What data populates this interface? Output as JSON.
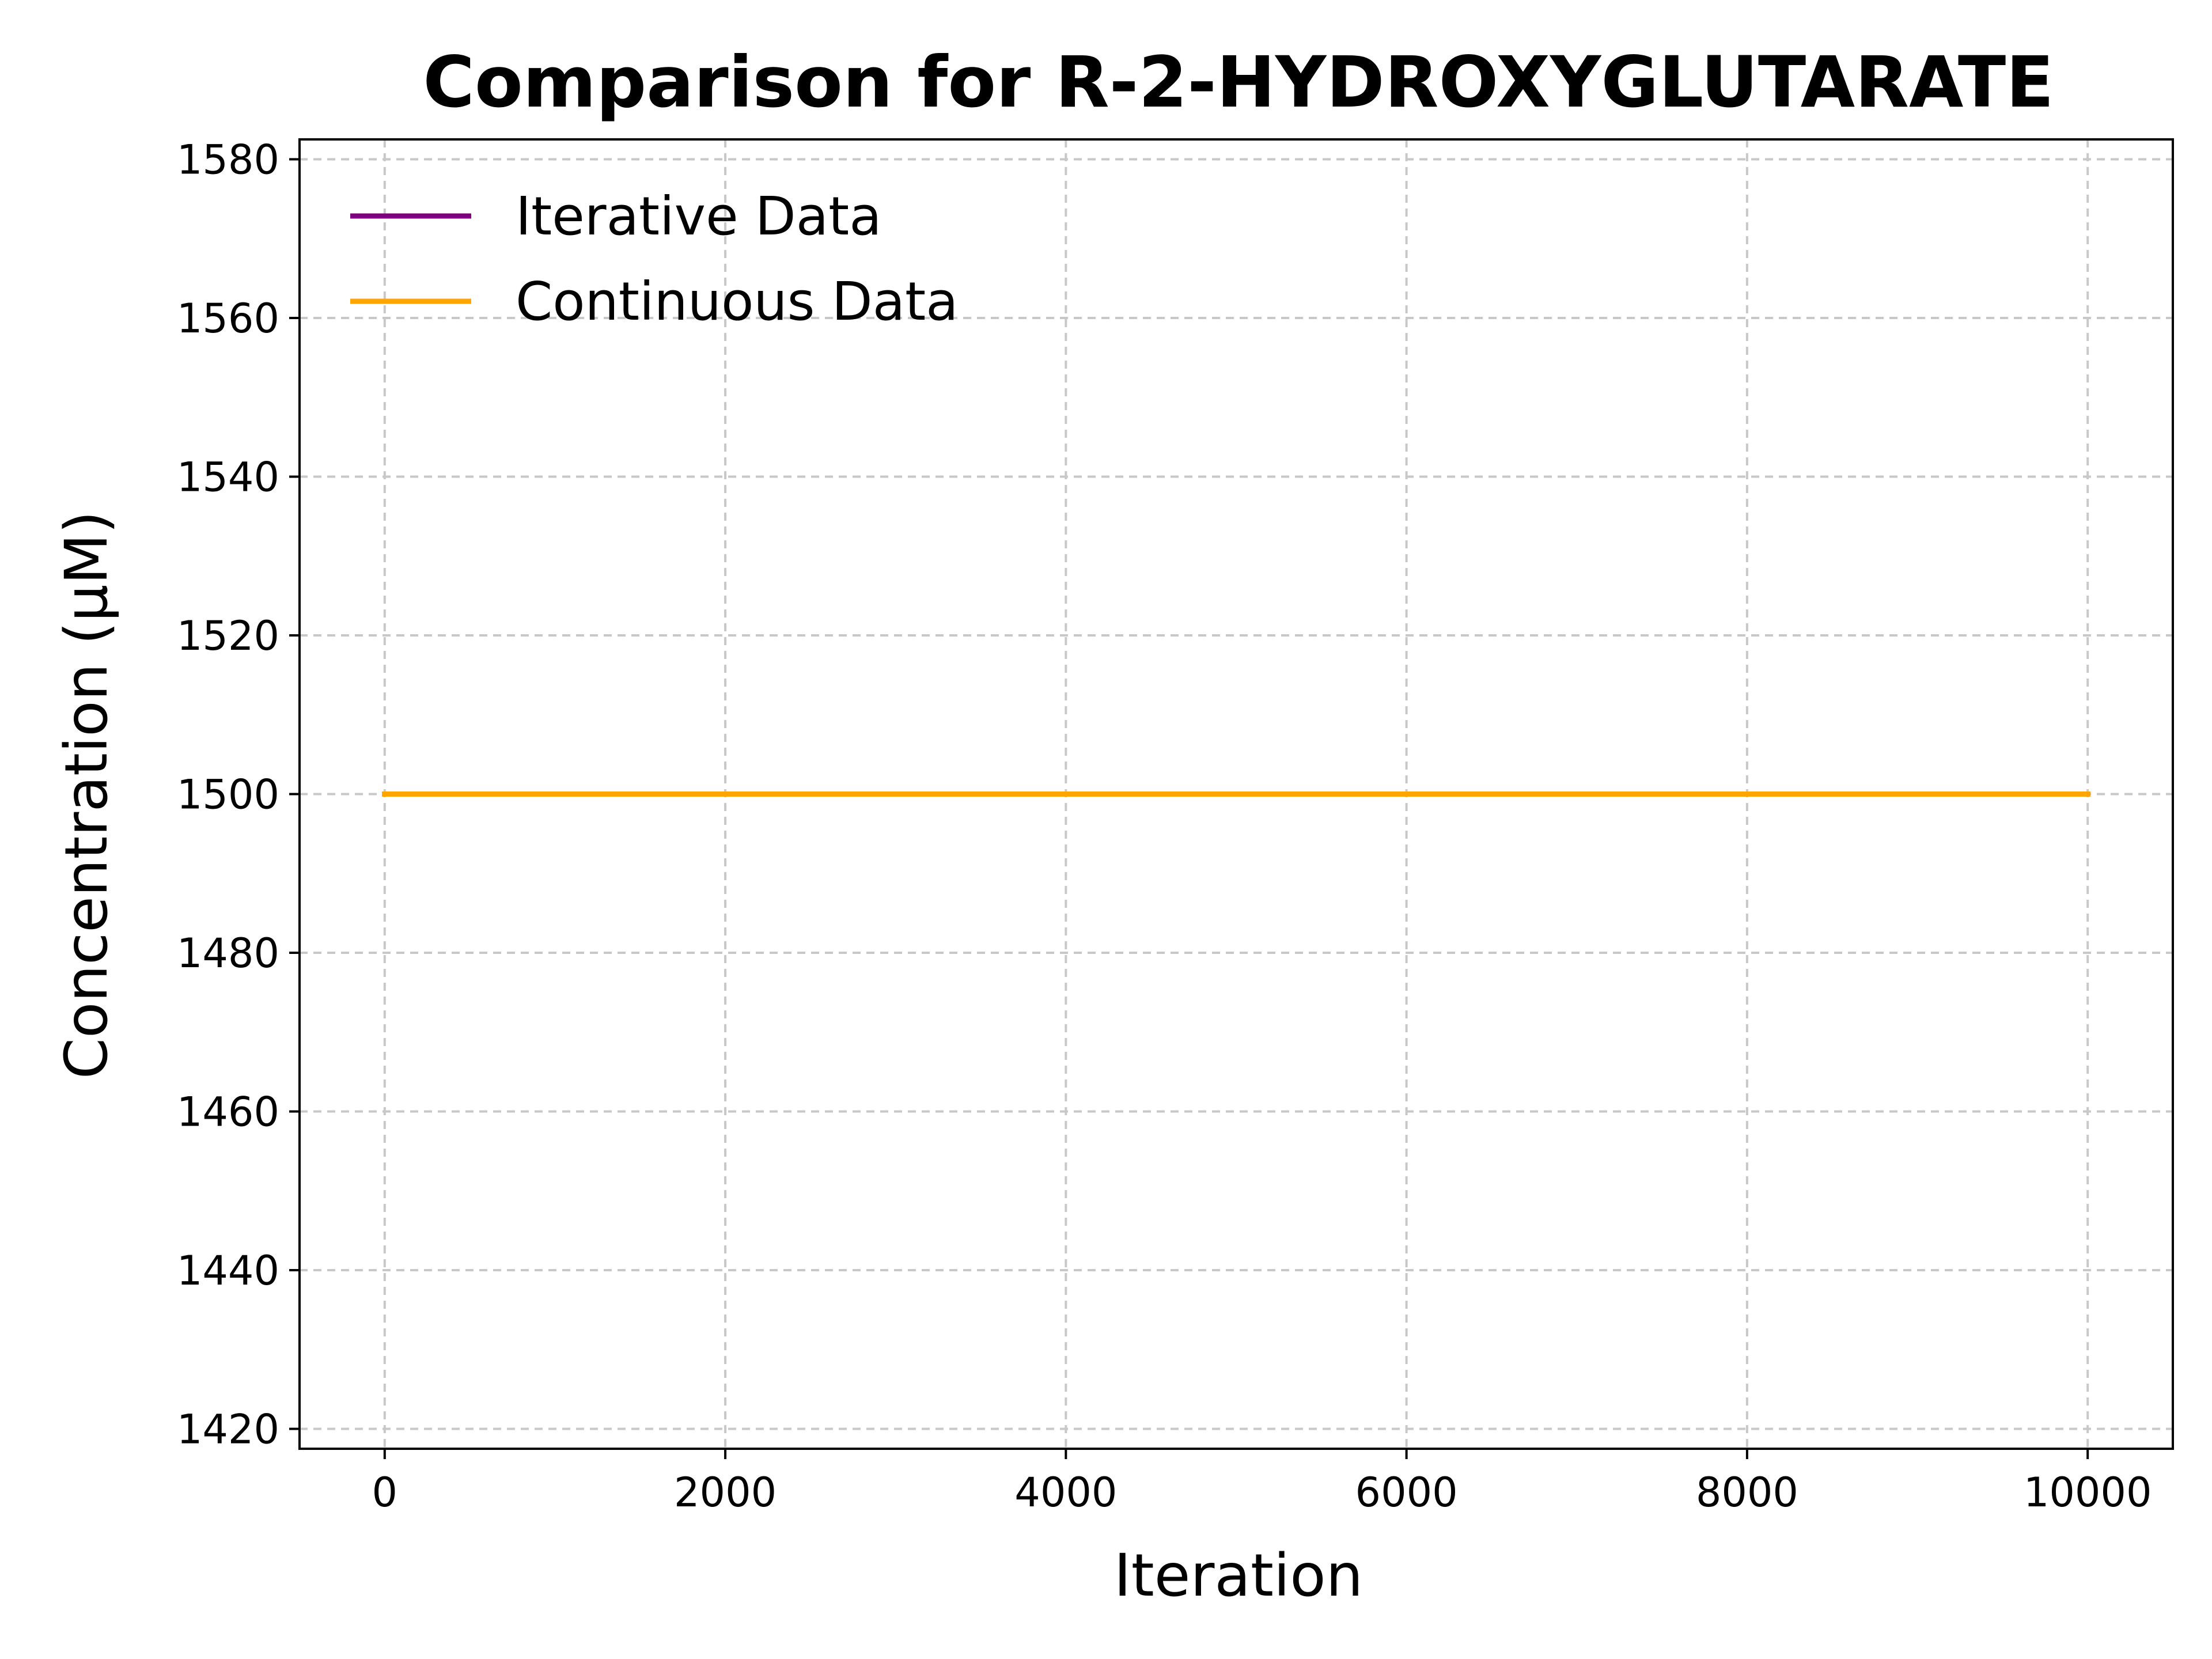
{
  "chart_data": {
    "type": "line",
    "title": "Comparison for R-2-HYDROXYGLUTARATE",
    "xlabel": "Iteration",
    "ylabel": "Concentration (μM)",
    "xlim": [
      -500,
      10500
    ],
    "ylim": [
      1417.5,
      1582.5
    ],
    "x_ticks": [
      0,
      2000,
      4000,
      6000,
      8000,
      10000
    ],
    "y_ticks": [
      1420,
      1440,
      1460,
      1480,
      1500,
      1520,
      1540,
      1560,
      1580
    ],
    "grid": true,
    "legend_position": "top-left",
    "series": [
      {
        "name": "Iterative Data",
        "color": "#800080",
        "x": [
          0,
          10000
        ],
        "y": [
          1500,
          1500
        ]
      },
      {
        "name": "Continuous Data",
        "color": "#FFA500",
        "x": [
          0,
          10000
        ],
        "y": [
          1500,
          1500
        ]
      }
    ]
  }
}
